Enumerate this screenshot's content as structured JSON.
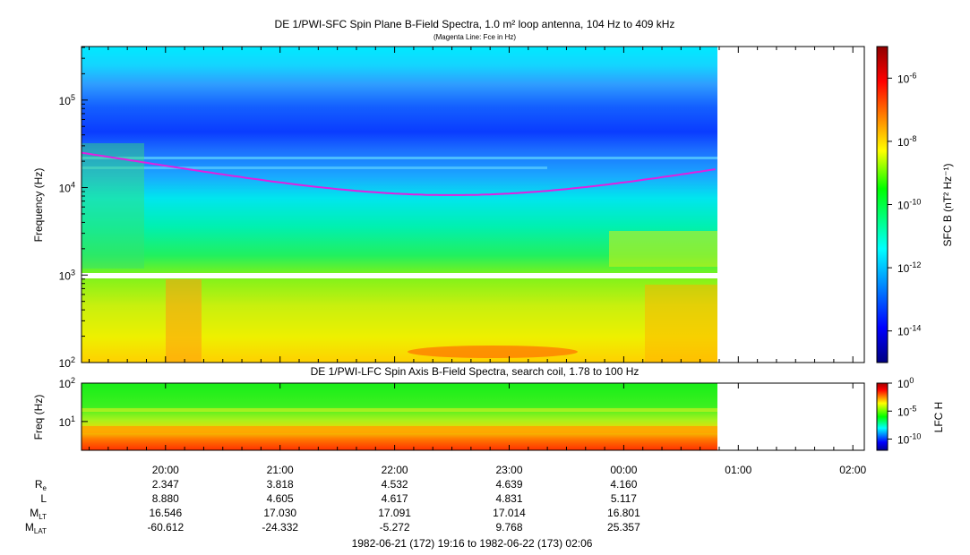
{
  "chart_data": [
    {
      "type": "heatmap",
      "title": "DE 1/PWI-SFC  Spin Plane B-Field Spectra, 1.0 m² loop antenna, 104 Hz to 409 kHz",
      "subtitle": "(Magenta Line: Fce in Hz)",
      "ylabel": "Frequency (Hz)",
      "yscale": "log",
      "ylim": [
        100,
        409000
      ],
      "y_ticks": [
        {
          "exp": "5"
        },
        {
          "exp": "4"
        },
        {
          "exp": "3"
        },
        {
          "exp": "2"
        }
      ],
      "colorbar": {
        "label": "SFC B (nT² Hz⁻¹)",
        "scale": "log",
        "range": [
          1e-15,
          1e-05
        ],
        "ticks": [
          {
            "exp": "-6"
          },
          {
            "exp": "-8"
          },
          {
            "exp": "-10"
          },
          {
            "exp": "-12"
          },
          {
            "exp": "-14"
          }
        ]
      },
      "fce_line": {
        "color": "#e020e0",
        "minimum_hz": 8200,
        "minimum_time": "22:30"
      },
      "data_end_time": "00:48"
    },
    {
      "type": "heatmap",
      "title": "DE 1/PWI-LFC  Spin Axis B-Field Spectra, search coil, 1.78 to 100 Hz",
      "ylabel": "Freq (Hz)",
      "yscale": "log",
      "ylim": [
        1.78,
        100
      ],
      "y_ticks": [
        {
          "exp": "2"
        },
        {
          "exp": "1"
        }
      ],
      "colorbar": {
        "label": "LFC H",
        "scale": "log",
        "range": [
          1e-12,
          1
        ],
        "ticks": [
          {
            "exp": "0"
          },
          {
            "exp": "-5"
          },
          {
            "exp": "-10"
          }
        ]
      }
    }
  ],
  "x_axis": {
    "ticks": [
      "20:00",
      "21:00",
      "22:00",
      "23:00",
      "00:00",
      "01:00",
      "02:00"
    ]
  },
  "ephemeris": {
    "rows": [
      {
        "label": "R",
        "sub": "e",
        "values": [
          "2.347",
          "3.818",
          "4.532",
          "4.639",
          "4.160"
        ]
      },
      {
        "label": "L",
        "sub": "",
        "values": [
          "8.880",
          "4.605",
          "4.617",
          "4.831",
          "5.117"
        ]
      },
      {
        "label": "M",
        "sub": "LT",
        "values": [
          "16.546",
          "17.030",
          "17.091",
          "17.014",
          "16.801"
        ]
      },
      {
        "label": "M",
        "sub": "LAT",
        "values": [
          "-60.612",
          "-24.332",
          "-5.272",
          "9.768",
          "25.357"
        ]
      }
    ]
  },
  "footer": "1982-06-21 (172) 19:16 to 1982-06-22 (173) 02:06",
  "colors": {
    "fce": "#e020e0",
    "background": "#ffffff"
  }
}
